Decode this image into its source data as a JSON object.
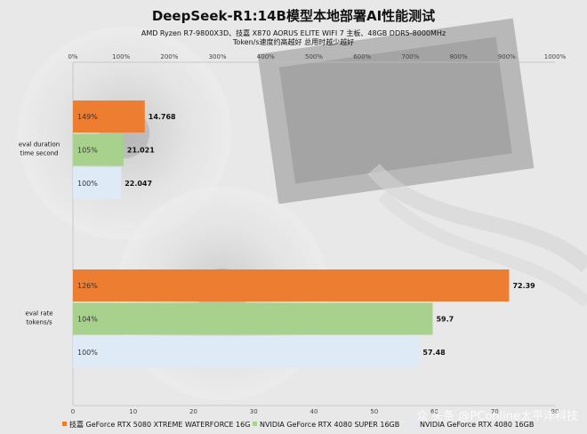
{
  "chart_data": [
    {
      "type": "bar",
      "orientation": "horizontal",
      "title": "DeepSeek-R1:14B模型本地部署AI性能测试",
      "subtitle_lines": [
        "AMD Ryzen R7-9800X3D、技嘉 X870 AORUS ELITE WIFI 7 主板、48GB DDR5-8000MHz",
        "Token/s速度约高越好 总用时越少越好"
      ],
      "top_axis": {
        "ticks": [
          "0%",
          "100%",
          "200%",
          "300%",
          "400%",
          "500%",
          "600%",
          "700%",
          "800%",
          "900%",
          "1000%"
        ],
        "range": [
          0,
          1000
        ]
      },
      "bottom_axis": {
        "ticks": [
          "0",
          "10",
          "20",
          "30",
          "40",
          "50",
          "60",
          "70",
          "80"
        ],
        "range": [
          0,
          80
        ]
      },
      "groups": [
        {
          "label_lines": [
            "eval  duration",
            "time second"
          ],
          "axis": "top",
          "bars": [
            {
              "series": "技嘉 GeForce RTX 5080 XTREME WATERFORCE 16G",
              "value": 14.768,
              "value_label": "14.768",
              "percent": 149,
              "percent_label": "149%"
            },
            {
              "series": "NVIDIA GeForce RTX 4080 SUPER 16GB",
              "value": 21.021,
              "value_label": "21.021",
              "percent": 105,
              "percent_label": "105%"
            },
            {
              "series": "NVIDIA GeForce RTX 4080 16GB",
              "value": 22.047,
              "value_label": "22.047",
              "percent": 100,
              "percent_label": "100%"
            }
          ]
        },
        {
          "label_lines": [
            "eval  rate",
            "tokens/s"
          ],
          "axis": "bottom",
          "bars": [
            {
              "series": "技嘉 GeForce RTX 5080 XTREME WATERFORCE 16G",
              "value": 72.39,
              "value_label": "72.39",
              "percent": 126,
              "percent_label": "126%"
            },
            {
              "series": "NVIDIA GeForce RTX 4080 SUPER 16GB",
              "value": 59.7,
              "value_label": "59.7",
              "percent": 104,
              "percent_label": "104%"
            },
            {
              "series": "NVIDIA GeForce RTX 4080 16GB",
              "value": 57.48,
              "value_label": "57.48",
              "percent": 100,
              "percent_label": "100%"
            }
          ]
        }
      ],
      "series": [
        {
          "name": "技嘉 GeForce RTX 5080 XTREME WATERFORCE 16G",
          "color": "#ed7d31"
        },
        {
          "name": "NVIDIA GeForce RTX 4080 SUPER 16GB",
          "color": "#a9d18e"
        },
        {
          "name": "NVIDIA GeForce RTX 4080 16GB",
          "color": "#deebf7"
        }
      ],
      "legend_position": "bottom",
      "grid": false
    }
  ],
  "watermark": "众 头条 @PConline太平洋科技"
}
